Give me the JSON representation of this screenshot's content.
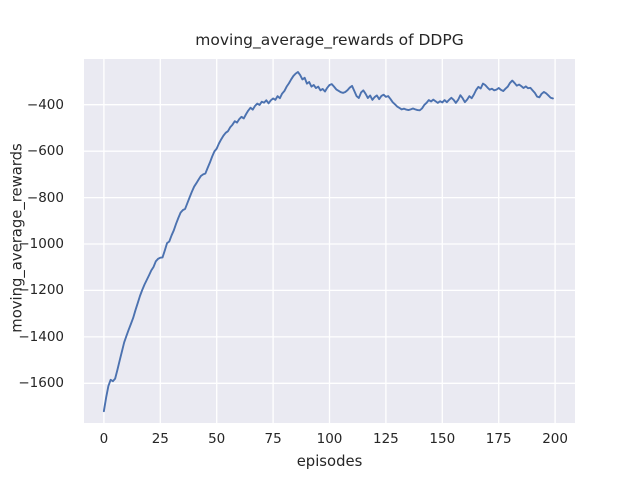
{
  "figure": {
    "background_color": "#ffffff"
  },
  "chart_data": {
    "type": "line",
    "title": "moving_average_rewards of DDPG",
    "xlabel": "episodes",
    "ylabel": "moving_average_rewards",
    "x_ticks": [
      0,
      25,
      50,
      75,
      100,
      125,
      150,
      175,
      200
    ],
    "x_tick_labels": [
      "0",
      "25",
      "50",
      "75",
      "100",
      "125",
      "150",
      "175",
      "200"
    ],
    "y_ticks": [
      -400,
      -600,
      -800,
      -1000,
      -1200,
      -1400,
      -1600
    ],
    "y_tick_labels": [
      "−400",
      "−600",
      "−800",
      "−1000",
      "−1200",
      "−1400",
      "−1600"
    ],
    "xlim": [
      -8.8,
      208.8
    ],
    "ylim": [
      -1771,
      -203
    ],
    "grid": true,
    "legend": false,
    "style": "seaborn-darkgrid",
    "colors": {
      "line": "#4c72b0",
      "plot_background": "#eaeaf2",
      "grid_line": "#ffffff",
      "figure_background": "#ffffff",
      "text": "#262626"
    },
    "series": [
      {
        "name": "moving_average_rewards",
        "x": "episode index 0-199",
        "values": [
          -1720,
          -1662,
          -1612,
          -1585,
          -1591,
          -1580,
          -1542,
          -1502,
          -1463,
          -1424,
          -1396,
          -1369,
          -1344,
          -1318,
          -1285,
          -1255,
          -1224,
          -1198,
          -1175,
          -1155,
          -1135,
          -1114,
          -1099,
          -1075,
          -1064,
          -1059,
          -1058,
          -1028,
          -996,
          -989,
          -963,
          -941,
          -913,
          -888,
          -865,
          -854,
          -849,
          -824,
          -799,
          -775,
          -753,
          -738,
          -722,
          -707,
          -700,
          -696,
          -672,
          -649,
          -623,
          -601,
          -589,
          -567,
          -549,
          -533,
          -521,
          -514,
          -497,
          -486,
          -471,
          -477,
          -462,
          -452,
          -459,
          -441,
          -425,
          -413,
          -421,
          -405,
          -395,
          -401,
          -387,
          -391,
          -381,
          -394,
          -381,
          -373,
          -379,
          -363,
          -372,
          -352,
          -341,
          -322,
          -308,
          -291,
          -276,
          -266,
          -259,
          -272,
          -291,
          -284,
          -309,
          -302,
          -322,
          -315,
          -328,
          -322,
          -338,
          -332,
          -343,
          -327,
          -315,
          -311,
          -322,
          -334,
          -340,
          -346,
          -349,
          -345,
          -337,
          -326,
          -319,
          -341,
          -363,
          -371,
          -347,
          -338,
          -353,
          -371,
          -360,
          -379,
          -367,
          -360,
          -376,
          -362,
          -357,
          -366,
          -363,
          -375,
          -389,
          -398,
          -408,
          -414,
          -420,
          -417,
          -421,
          -423,
          -420,
          -416,
          -420,
          -423,
          -424,
          -416,
          -401,
          -392,
          -380,
          -386,
          -378,
          -385,
          -392,
          -385,
          -390,
          -380,
          -389,
          -379,
          -370,
          -379,
          -392,
          -379,
          -359,
          -372,
          -389,
          -378,
          -363,
          -372,
          -356,
          -336,
          -323,
          -330,
          -309,
          -315,
          -326,
          -335,
          -331,
          -338,
          -335,
          -328,
          -336,
          -341,
          -331,
          -322,
          -306,
          -296,
          -306,
          -318,
          -313,
          -320,
          -328,
          -321,
          -329,
          -327,
          -338,
          -349,
          -365,
          -368,
          -353,
          -345,
          -351,
          -360,
          -370,
          -373
        ]
      }
    ]
  }
}
